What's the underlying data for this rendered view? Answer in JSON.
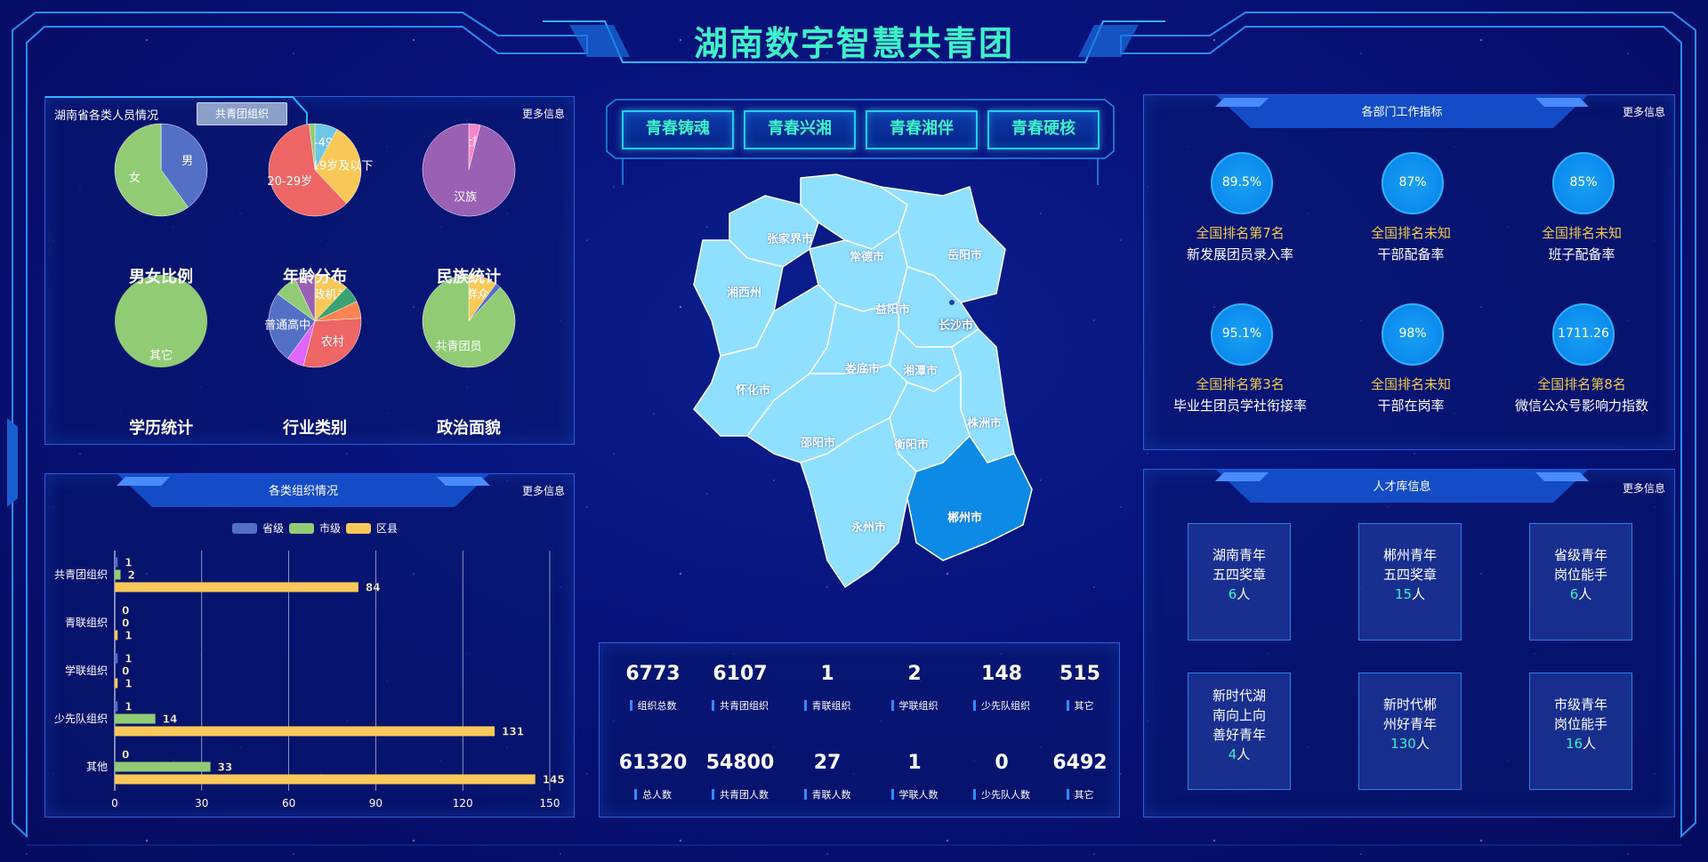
{
  "header": {
    "title": "湖南数字智慧共青团"
  },
  "nav": [
    "青春铸魂",
    "青春兴湘",
    "青春湘伴",
    "青春硬核"
  ],
  "people_panel": {
    "title": "湖南省各类人员情况",
    "tag": "共青团组织",
    "more": "更多信息",
    "pies": [
      {
        "caption": "男女比例",
        "slices": [
          {
            "label": "男",
            "value": 40,
            "color": "#5470c6"
          },
          {
            "label": "女",
            "value": 60,
            "color": "#91cc75"
          }
        ]
      },
      {
        "caption": "年龄分布",
        "slices": [
          {
            "label": "40-49岁",
            "value": 8,
            "color": "#6ec6e6"
          },
          {
            "label": "19岁及以下",
            "value": 30,
            "color": "#fac858"
          },
          {
            "label": "20-29岁",
            "value": 60,
            "color": "#ee6666"
          },
          {
            "label": "",
            "value": 2,
            "color": "#91cc75"
          }
        ]
      },
      {
        "caption": "民族统计",
        "slices": [
          {
            "label": "壮族",
            "value": 4,
            "color": "#fc84c9"
          },
          {
            "label": "汉族",
            "value": 96,
            "color": "#9a60b4"
          }
        ]
      },
      {
        "caption": "学历统计",
        "slices": [
          {
            "label": "其它",
            "value": 100,
            "color": "#91cc75"
          }
        ]
      },
      {
        "caption": "行业类别",
        "slices": [
          {
            "label": "党政机关",
            "value": 12,
            "color": "#fac858"
          },
          {
            "label": "",
            "value": 6,
            "color": "#3ba272"
          },
          {
            "label": "",
            "value": 6,
            "color": "#fc8452"
          },
          {
            "label": "农村",
            "value": 30,
            "color": "#ee6666"
          },
          {
            "label": "",
            "value": 6,
            "color": "#e066ff"
          },
          {
            "label": "普通高中",
            "value": 25,
            "color": "#5470c6"
          },
          {
            "label": "",
            "value": 8,
            "color": "#91cc75"
          },
          {
            "label": "",
            "value": 7,
            "color": "#9a60b4"
          }
        ]
      },
      {
        "caption": "政治面貌",
        "slices": [
          {
            "label": "群众",
            "value": 10,
            "color": "#fac858"
          },
          {
            "label": "",
            "value": 2,
            "color": "#5470c6"
          },
          {
            "label": "共青团员",
            "value": 88,
            "color": "#91cc75"
          }
        ]
      }
    ]
  },
  "org_panel": {
    "title": "各类组织情况",
    "more": "更多信息"
  },
  "chart_data": {
    "type": "bar",
    "orientation": "horizontal",
    "title": "",
    "categories": [
      "共青团组织",
      "青联组织",
      "学联组织",
      "少先队组织",
      "其他"
    ],
    "series": [
      {
        "name": "省级",
        "color": "#5470c6",
        "values": [
          1,
          0,
          1,
          1,
          0
        ]
      },
      {
        "name": "市级",
        "color": "#91cc75",
        "values": [
          2,
          0,
          0,
          14,
          33
        ]
      },
      {
        "name": "区县",
        "color": "#fac858",
        "values": [
          84,
          1,
          1,
          131,
          145
        ]
      }
    ],
    "xticks": [
      0,
      30,
      60,
      90,
      120,
      150
    ],
    "xlim": [
      0,
      150
    ],
    "legend": "top-center",
    "grid": "vertical"
  },
  "map": {
    "cities": [
      "张家界市",
      "常德市",
      "岳阳市",
      "湘西州",
      "益阳市",
      "长沙市",
      "怀化市",
      "娄底市",
      "湘潭市",
      "株洲市",
      "邵阳市",
      "衡阳市",
      "永州市",
      "郴州市"
    ]
  },
  "stats": {
    "row1": [
      {
        "value": "6773",
        "label": "组织总数"
      },
      {
        "value": "6107",
        "label": "共青团组织"
      },
      {
        "value": "1",
        "label": "青联组织"
      },
      {
        "value": "2",
        "label": "学联组织"
      },
      {
        "value": "148",
        "label": "少先队组织"
      },
      {
        "value": "515",
        "label": "其它"
      }
    ],
    "row2": [
      {
        "value": "61320",
        "label": "总人数"
      },
      {
        "value": "54800",
        "label": "共青团人数"
      },
      {
        "value": "27",
        "label": "青联人数"
      },
      {
        "value": "1",
        "label": "学联人数"
      },
      {
        "value": "0",
        "label": "少先队人数"
      },
      {
        "value": "6492",
        "label": "其它"
      }
    ]
  },
  "dept_panel": {
    "title": "各部门工作指标",
    "more": "更多信息",
    "items": [
      {
        "value": "89.5%",
        "rank": "全国排名第7名",
        "name": "新发展团员录入率"
      },
      {
        "value": "87%",
        "rank": "全国排名未知",
        "name": "干部配备率"
      },
      {
        "value": "85%",
        "rank": "全国排名未知",
        "name": "班子配备率"
      },
      {
        "value": "95.1%",
        "rank": "全国排名第3名",
        "name": "毕业生团员学社衔接率"
      },
      {
        "value": "98%",
        "rank": "全国排名未知",
        "name": "干部在岗率"
      },
      {
        "value": "1711.26",
        "rank": "全国排名第8名",
        "name": "微信公众号影响力指数"
      }
    ]
  },
  "talent_panel": {
    "title": "人才库信息",
    "more": "更多信息",
    "items": [
      {
        "lines": [
          "湖南青年",
          "五四奖章"
        ],
        "count": "6",
        "unit": "人"
      },
      {
        "lines": [
          "郴州青年",
          "五四奖章"
        ],
        "count": "15",
        "unit": "人"
      },
      {
        "lines": [
          "省级青年",
          "岗位能手"
        ],
        "count": "6",
        "unit": "人"
      },
      {
        "lines": [
          "新时代湖",
          "南向上向",
          "善好青年"
        ],
        "count": "4",
        "unit": "人"
      },
      {
        "lines": [
          "新时代郴",
          "州好青年"
        ],
        "count": "130",
        "unit": "人"
      },
      {
        "lines": [
          "市级青年",
          "岗位能手"
        ],
        "count": "16",
        "unit": "人"
      }
    ]
  }
}
